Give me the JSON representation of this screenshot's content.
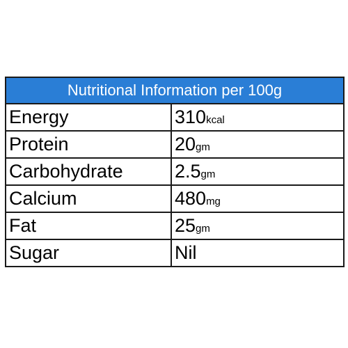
{
  "table": {
    "title": "Nutritional Information per 100g",
    "rows": [
      {
        "name": "Energy",
        "value": "310",
        "unit": "kcal"
      },
      {
        "name": "Protein",
        "value": "20",
        "unit": "gm"
      },
      {
        "name": "Carbohydrate",
        "value": "2.5",
        "unit": "gm"
      },
      {
        "name": "Calcium",
        "value": "480",
        "unit": "mg"
      },
      {
        "name": "Fat",
        "value": "25",
        "unit": "gm"
      },
      {
        "name": "Sugar",
        "value": "Nil",
        "unit": ""
      }
    ],
    "colors": {
      "header_background": "#2a7ed6",
      "header_text": "#ffffff",
      "border": "#1a1a1a"
    }
  }
}
